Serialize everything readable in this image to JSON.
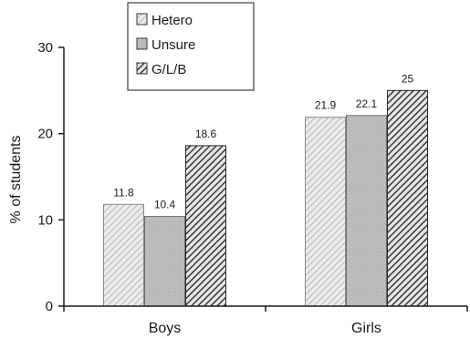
{
  "chart_data": {
    "type": "bar",
    "categories": [
      "Boys",
      "Girls"
    ],
    "series": [
      {
        "name": "Hetero",
        "values": [
          11.8,
          21.9
        ],
        "pattern": "light-hatch"
      },
      {
        "name": "Unsure",
        "values": [
          10.4,
          22.1
        ],
        "pattern": "gray-solid"
      },
      {
        "name": "G/L/B",
        "values": [
          18.6,
          25
        ],
        "pattern": "dark-hatch"
      }
    ],
    "data_labels": [
      [
        "11.8",
        "10.4",
        "18.6"
      ],
      [
        "21.9",
        "22.1",
        "25"
      ]
    ],
    "ylabel": "% of students",
    "ylim": [
      0,
      30
    ],
    "yticks": [
      0,
      10,
      20,
      30
    ],
    "legend_position": "top-left",
    "grid": false
  }
}
